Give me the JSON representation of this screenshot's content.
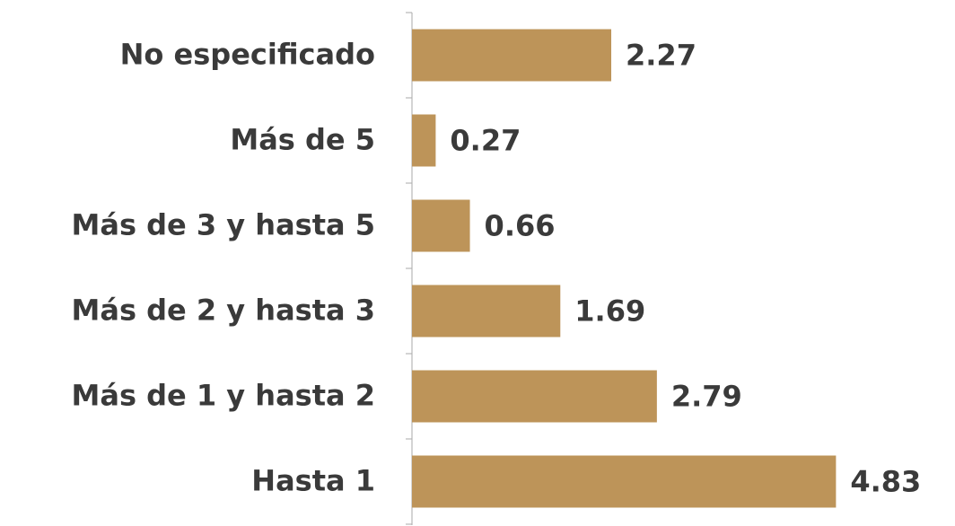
{
  "chart_data": {
    "type": "bar",
    "orientation": "horizontal",
    "categories": [
      "No especificado",
      "Más de 5",
      "Más de 3 y hasta 5",
      "Más de 2 y hasta 3",
      "Más de 1 y hasta 2",
      "Hasta 1"
    ],
    "values": [
      2.27,
      0.27,
      0.66,
      1.69,
      2.79,
      4.83
    ],
    "color": "#bd9459"
  }
}
